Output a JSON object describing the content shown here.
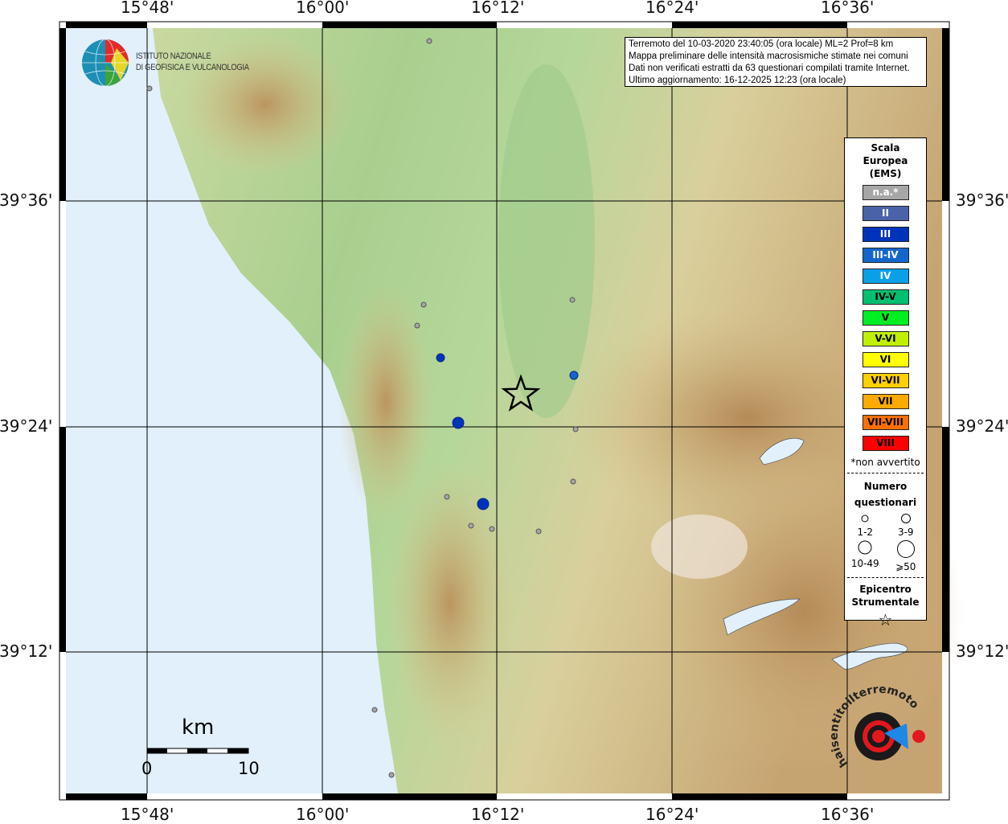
{
  "info": {
    "line1": "Terremoto del 10-03-2020 23:40:05 (ora locale) ML=2 Prof=8 km",
    "line2": "Mappa preliminare delle intensità macrosismiche stimate nei comuni",
    "line3": "Dati non verificati estratti da 63 questionari compilati tramite Internet.",
    "line4": "Ultimo aggiornamento: 16-12-2025 12:23 (ora locale)"
  },
  "axes": {
    "lon_labels": [
      "15°48'",
      "16°00'",
      "16°12'",
      "16°24'",
      "16°36'"
    ],
    "lat_labels": [
      "39°36'",
      "39°24'",
      "39°12'"
    ]
  },
  "logo": {
    "line1": "ISTITUTO NAZIONALE",
    "line2": "DI GEOFISICA E VULCANOLOGIA"
  },
  "watermark": "www.haisentitoilterremoto.it",
  "legend": {
    "title": [
      "Scala",
      "Europea",
      "(EMS)"
    ],
    "classes": [
      {
        "label": "n.a.*",
        "color": "#a6a6a6",
        "text": "#ffffff"
      },
      {
        "label": "II",
        "color": "#4a63a8",
        "text": "#ffffff"
      },
      {
        "label": "III",
        "color": "#0033bb",
        "text": "#ffffff"
      },
      {
        "label": "III-IV",
        "color": "#1466cc",
        "text": "#ffffff"
      },
      {
        "label": "IV",
        "color": "#0aa0e8",
        "text": "#ffffff"
      },
      {
        "label": "IV-V",
        "color": "#00c070",
        "text": "#000000"
      },
      {
        "label": "V",
        "color": "#00ee22",
        "text": "#000000"
      },
      {
        "label": "V-VI",
        "color": "#c0f000",
        "text": "#000000"
      },
      {
        "label": "VI",
        "color": "#ffff00",
        "text": "#000000"
      },
      {
        "label": "VI-VII",
        "color": "#ffd000",
        "text": "#000000"
      },
      {
        "label": "VII",
        "color": "#ffaa00",
        "text": "#000000"
      },
      {
        "label": "VII-VIII",
        "color": "#ff7000",
        "text": "#000000"
      },
      {
        "label": "VIII",
        "color": "#ff0000",
        "text": "#000000"
      }
    ],
    "note": "*non avvertito",
    "count_title": [
      "Numero",
      "questionari"
    ],
    "count_classes": [
      "1-2",
      "3-9",
      "10-49",
      "⩾50"
    ],
    "epicenter_title": [
      "Epicentro",
      "Strumentale"
    ]
  },
  "scale_bar": {
    "unit": "km",
    "min": "0",
    "max": "10"
  },
  "epicenter": {
    "lon": 16.2271,
    "lat": 39.4285,
    "icon": "star-icon"
  },
  "points": [
    {
      "lon": 16.1223,
      "lat": 39.7416,
      "class": "n.a.*",
      "size": "1-2"
    },
    {
      "lon": 15.8023,
      "lat": 39.6996,
      "class": "n.a.*",
      "size": "1-2"
    },
    {
      "lon": 16.1159,
      "lat": 39.5082,
      "class": "n.a.*",
      "size": "1-2"
    },
    {
      "lon": 16.1085,
      "lat": 39.4897,
      "class": "n.a.*",
      "size": "1-2"
    },
    {
      "lon": 16.286,
      "lat": 39.5125,
      "class": "n.a.*",
      "size": "1-2"
    },
    {
      "lon": 16.2897,
      "lat": 39.3979,
      "class": "n.a.*",
      "size": "1-2"
    },
    {
      "lon": 16.2869,
      "lat": 39.3516,
      "class": "n.a.*",
      "size": "1-2"
    },
    {
      "lon": 16.1425,
      "lat": 39.3381,
      "class": "n.a.*",
      "size": "1-2"
    },
    {
      "lon": 16.1701,
      "lat": 39.3125,
      "class": "n.a.*",
      "size": "1-2"
    },
    {
      "lon": 16.194,
      "lat": 39.3096,
      "class": "n.a.*",
      "size": "1-2"
    },
    {
      "lon": 16.2474,
      "lat": 39.3075,
      "class": "n.a.*",
      "size": "1-2"
    },
    {
      "lon": 16.0598,
      "lat": 39.1495,
      "class": "n.a.*",
      "size": "1-2"
    },
    {
      "lon": 16.0791,
      "lat": 39.0918,
      "class": "n.a.*",
      "size": "1-2"
    },
    {
      "lon": 16.1352,
      "lat": 39.4612,
      "class": "III",
      "size": "1-2"
    },
    {
      "lon": 16.1554,
      "lat": 39.4036,
      "class": "III",
      "size": "3-9"
    },
    {
      "lon": 16.1839,
      "lat": 39.3317,
      "class": "III",
      "size": "3-9"
    },
    {
      "lon": 16.2878,
      "lat": 39.4456,
      "class": "III-IV",
      "size": "1-2"
    }
  ]
}
